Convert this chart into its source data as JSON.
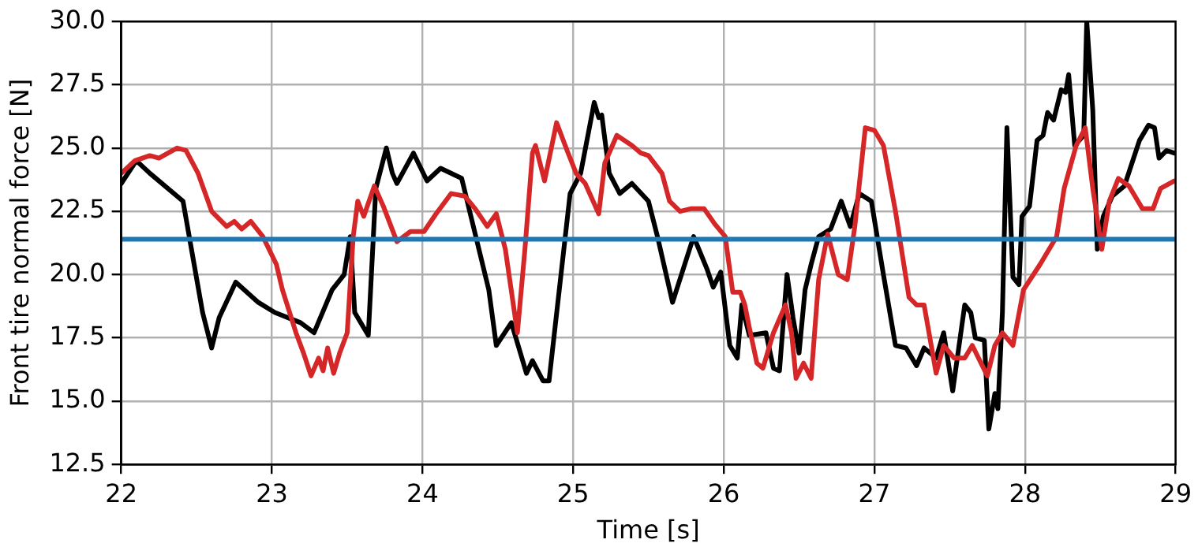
{
  "chart_data": {
    "type": "line",
    "xlabel": "Time [s]",
    "ylabel": "Front tire normal force [N]",
    "xlim": [
      22,
      29
    ],
    "ylim": [
      12.5,
      30
    ],
    "xticks": [
      22,
      23,
      24,
      25,
      26,
      27,
      28,
      29
    ],
    "yticks": [
      {
        "value": 12.5,
        "label": "12.5"
      },
      {
        "value": 15,
        "label": "15.0"
      },
      {
        "value": 17.5,
        "label": "17.5"
      },
      {
        "value": 20,
        "label": "20.0"
      },
      {
        "value": 22.5,
        "label": "22.5"
      },
      {
        "value": 25,
        "label": "25.0"
      },
      {
        "value": 27.5,
        "label": "27.5"
      },
      {
        "value": 30,
        "label": "30.0"
      }
    ],
    "grid": true,
    "legend": false,
    "marker": "none",
    "line_style": "solid",
    "series": [
      {
        "color": "#000000",
        "x": [
          22.0,
          22.1,
          22.19,
          22.41,
          22.54,
          22.6,
          22.65,
          22.76,
          22.91,
          23.02,
          23.19,
          23.28,
          23.4,
          23.48,
          23.52,
          23.55,
          23.64,
          23.69,
          23.76,
          23.8,
          23.83,
          23.94,
          24.03,
          24.12,
          24.26,
          24.44,
          24.49,
          24.59,
          24.69,
          24.73,
          24.8,
          24.84,
          24.98,
          25.05,
          25.14,
          25.17,
          25.19,
          25.24,
          25.31,
          25.39,
          25.5,
          25.56,
          25.66,
          25.8,
          25.89,
          25.93,
          25.98,
          26.04,
          26.09,
          26.12,
          26.17,
          26.28,
          26.33,
          26.37,
          26.42,
          26.46,
          26.5,
          26.54,
          26.58,
          26.63,
          26.71,
          26.78,
          26.84,
          26.9,
          26.98,
          27.06,
          27.14,
          27.21,
          27.28,
          27.33,
          27.41,
          27.46,
          27.52,
          27.6,
          27.64,
          27.67,
          27.73,
          27.76,
          27.8,
          27.82,
          27.85,
          27.88,
          27.92,
          27.96,
          27.98,
          28.03,
          28.08,
          28.12,
          28.15,
          28.19,
          28.24,
          28.27,
          28.29,
          28.33,
          28.39,
          28.41,
          28.45,
          28.48,
          28.52,
          28.58,
          28.66,
          28.71,
          28.76,
          28.82,
          28.86,
          28.89,
          28.94,
          28.99
        ],
        "values": [
          23.6,
          24.5,
          24.0,
          22.9,
          18.5,
          17.1,
          18.3,
          19.7,
          18.9,
          18.5,
          18.1,
          17.7,
          19.4,
          20.0,
          21.5,
          18.5,
          17.6,
          23.4,
          25.0,
          24.0,
          23.6,
          24.8,
          23.7,
          24.2,
          23.8,
          19.4,
          17.2,
          18.1,
          16.1,
          16.6,
          15.8,
          15.8,
          23.2,
          24.0,
          26.8,
          26.2,
          26.3,
          24.0,
          23.2,
          23.6,
          22.9,
          21.5,
          18.9,
          21.5,
          20.2,
          19.5,
          20.1,
          17.2,
          16.7,
          18.8,
          17.6,
          17.7,
          16.3,
          16.2,
          20.0,
          18.3,
          16.9,
          19.4,
          20.4,
          21.5,
          21.8,
          22.9,
          21.9,
          23.2,
          22.9,
          20.0,
          17.2,
          17.1,
          16.4,
          17.1,
          16.7,
          17.7,
          15.4,
          18.8,
          18.5,
          17.5,
          17.4,
          13.9,
          15.3,
          14.7,
          18.5,
          25.8,
          19.9,
          19.6,
          22.3,
          22.7,
          25.3,
          25.5,
          26.4,
          26.1,
          27.3,
          27.2,
          27.9,
          25.1,
          25.5,
          30.0,
          26.5,
          21.0,
          22.3,
          23.1,
          23.5,
          24.4,
          25.3,
          25.9,
          25.8,
          24.6,
          24.9,
          24.8
        ]
      },
      {
        "color": "#d62728",
        "x": [
          22.0,
          22.09,
          22.19,
          22.25,
          22.37,
          22.43,
          22.51,
          22.6,
          22.7,
          22.75,
          22.8,
          22.86,
          22.94,
          23.03,
          23.07,
          23.16,
          23.21,
          23.26,
          23.31,
          23.34,
          23.37,
          23.41,
          23.45,
          23.5,
          23.54,
          23.57,
          23.61,
          23.68,
          23.74,
          23.83,
          23.92,
          24.01,
          24.09,
          24.19,
          24.28,
          24.35,
          24.43,
          24.49,
          24.55,
          24.63,
          24.68,
          24.73,
          24.75,
          24.81,
          24.89,
          24.96,
          25.02,
          25.08,
          25.17,
          25.21,
          25.29,
          25.39,
          25.45,
          25.5,
          25.59,
          25.64,
          25.71,
          25.78,
          25.87,
          25.94,
          26.01,
          26.06,
          26.11,
          26.14,
          26.17,
          26.22,
          26.26,
          26.33,
          26.41,
          26.45,
          26.48,
          26.53,
          26.58,
          26.63,
          26.69,
          26.76,
          26.82,
          26.87,
          26.94,
          27.0,
          27.06,
          27.14,
          27.23,
          27.28,
          27.33,
          27.41,
          27.46,
          27.53,
          27.6,
          27.65,
          27.75,
          27.8,
          27.85,
          27.92,
          27.99,
          28.1,
          28.21,
          28.26,
          28.34,
          28.4,
          28.45,
          28.51,
          28.56,
          28.62,
          28.69,
          28.78,
          28.85,
          28.9,
          28.99
        ],
        "values": [
          24.0,
          24.5,
          24.7,
          24.6,
          25.0,
          24.9,
          24.0,
          22.5,
          21.9,
          22.1,
          21.8,
          22.1,
          21.5,
          20.4,
          19.4,
          17.7,
          16.9,
          16.0,
          16.7,
          16.2,
          17.1,
          16.1,
          16.9,
          17.7,
          21.5,
          22.9,
          22.3,
          23.5,
          22.7,
          21.3,
          21.7,
          21.7,
          22.4,
          23.2,
          23.1,
          22.6,
          21.9,
          22.4,
          21.0,
          17.7,
          21.0,
          24.8,
          25.1,
          23.7,
          26.0,
          24.9,
          24.0,
          23.6,
          22.4,
          24.4,
          25.5,
          25.1,
          24.8,
          24.7,
          24.0,
          22.9,
          22.5,
          22.6,
          22.6,
          22.0,
          21.5,
          19.3,
          19.3,
          18.8,
          17.9,
          16.5,
          16.3,
          17.7,
          18.8,
          17.7,
          15.9,
          16.5,
          15.9,
          19.8,
          21.6,
          20.0,
          19.8,
          21.9,
          25.8,
          25.7,
          25.1,
          22.5,
          19.1,
          18.8,
          18.8,
          16.1,
          17.2,
          16.7,
          16.7,
          17.2,
          16.0,
          17.2,
          17.7,
          17.2,
          19.4,
          20.4,
          21.5,
          23.4,
          25.1,
          25.8,
          23.4,
          21.0,
          22.9,
          23.8,
          23.5,
          22.6,
          22.6,
          23.4,
          23.7
        ]
      },
      {
        "color": "#1f77b4",
        "x": [
          22,
          29
        ],
        "values": [
          21.4,
          21.4
        ]
      }
    ]
  }
}
